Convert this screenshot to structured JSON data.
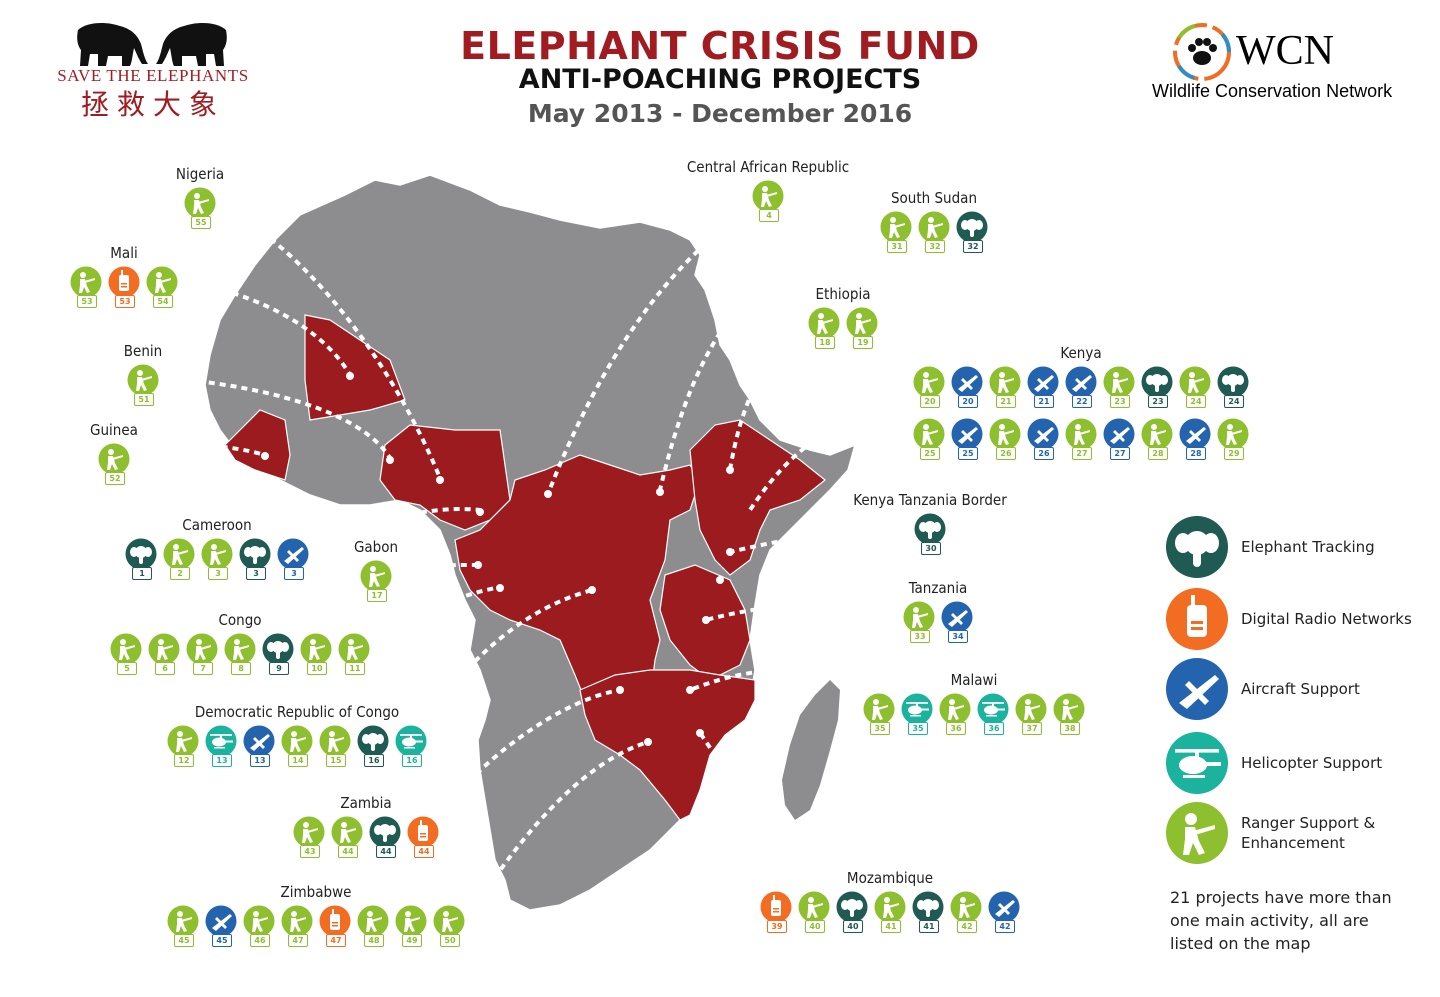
{
  "header": {
    "title": "ELEPHANT CRISIS FUND",
    "subtitle": "ANTI-POACHING PROJECTS",
    "date_range": "May 2013 - December 2016"
  },
  "logos": {
    "save_the_elephants": {
      "text": "SAVE THE ELEPHANTS",
      "chinese": "拯救大象"
    },
    "wcn": {
      "text": "WCN",
      "subtitle": "Wildlife Conservation Network"
    }
  },
  "colors": {
    "title_red": "#a11c21",
    "map_grey": "#8d8d8f",
    "highlight_red": "#9b1b1f",
    "border": "#ffffff",
    "ranger": "#8dbf2e",
    "radio": "#f26c21",
    "aircraft": "#2463ad",
    "helicopter": "#1bb39d",
    "tracking": "#1f5b53"
  },
  "legend": {
    "items": [
      {
        "key": "tracking",
        "label": "Elephant Tracking"
      },
      {
        "key": "radio",
        "label": "Digital Radio Networks"
      },
      {
        "key": "aircraft",
        "label": "Aircraft Support"
      },
      {
        "key": "helicopter",
        "label": "Helicopter Support"
      },
      {
        "key": "ranger",
        "label": "Ranger Support &\nEnhancement"
      }
    ],
    "note": "21 projects have more than one main activity, all are listed on the map"
  },
  "countries": [
    {
      "id": "nigeria",
      "name": "Nigeria",
      "projects": [
        {
          "type": "ranger",
          "n": "55"
        }
      ]
    },
    {
      "id": "mali",
      "name": "Mali",
      "projects": [
        {
          "type": "ranger",
          "n": "53"
        },
        {
          "type": "radio",
          "n": "53"
        },
        {
          "type": "ranger",
          "n": "54"
        }
      ]
    },
    {
      "id": "benin",
      "name": "Benin",
      "projects": [
        {
          "type": "ranger",
          "n": "51"
        }
      ]
    },
    {
      "id": "guinea",
      "name": "Guinea",
      "projects": [
        {
          "type": "ranger",
          "n": "52"
        }
      ]
    },
    {
      "id": "cameroon",
      "name": "Cameroon",
      "projects": [
        {
          "type": "tracking",
          "n": "1"
        },
        {
          "type": "ranger",
          "n": "2"
        },
        {
          "type": "ranger",
          "n": "3"
        },
        {
          "type": "tracking",
          "n": "3"
        },
        {
          "type": "aircraft",
          "n": "3"
        }
      ]
    },
    {
      "id": "gabon",
      "name": "Gabon",
      "projects": [
        {
          "type": "ranger",
          "n": "17"
        }
      ]
    },
    {
      "id": "congo",
      "name": "Congo",
      "projects": [
        {
          "type": "ranger",
          "n": "5"
        },
        {
          "type": "ranger",
          "n": "6"
        },
        {
          "type": "ranger",
          "n": "7"
        },
        {
          "type": "ranger",
          "n": "8"
        },
        {
          "type": "tracking",
          "n": "9"
        },
        {
          "type": "ranger",
          "n": "10"
        },
        {
          "type": "ranger",
          "n": "11"
        }
      ]
    },
    {
      "id": "drc",
      "name": "Democratic Republic of Congo",
      "projects": [
        {
          "type": "ranger",
          "n": "12"
        },
        {
          "type": "helicopter",
          "n": "13"
        },
        {
          "type": "aircraft",
          "n": "13"
        },
        {
          "type": "ranger",
          "n": "14"
        },
        {
          "type": "ranger",
          "n": "15"
        },
        {
          "type": "tracking",
          "n": "16"
        },
        {
          "type": "helicopter",
          "n": "16"
        }
      ]
    },
    {
      "id": "zambia",
      "name": "Zambia",
      "projects": [
        {
          "type": "ranger",
          "n": "43"
        },
        {
          "type": "ranger",
          "n": "44"
        },
        {
          "type": "tracking",
          "n": "44"
        },
        {
          "type": "radio",
          "n": "44"
        }
      ]
    },
    {
      "id": "zimbabwe",
      "name": "Zimbabwe",
      "projects": [
        {
          "type": "ranger",
          "n": "45"
        },
        {
          "type": "aircraft",
          "n": "45"
        },
        {
          "type": "ranger",
          "n": "46"
        },
        {
          "type": "ranger",
          "n": "47"
        },
        {
          "type": "radio",
          "n": "47"
        },
        {
          "type": "ranger",
          "n": "48"
        },
        {
          "type": "ranger",
          "n": "49"
        },
        {
          "type": "ranger",
          "n": "50"
        }
      ]
    },
    {
      "id": "car",
      "name": "Central African Republic",
      "projects": [
        {
          "type": "ranger",
          "n": "4"
        }
      ]
    },
    {
      "id": "south_sudan",
      "name": "South Sudan",
      "projects": [
        {
          "type": "ranger",
          "n": "31"
        },
        {
          "type": "ranger",
          "n": "32"
        },
        {
          "type": "tracking",
          "n": "32"
        }
      ]
    },
    {
      "id": "ethiopia",
      "name": "Ethiopia",
      "projects": [
        {
          "type": "ranger",
          "n": "18"
        },
        {
          "type": "ranger",
          "n": "19"
        }
      ]
    },
    {
      "id": "kenya",
      "name": "Kenya",
      "rows": [
        [
          {
            "type": "ranger",
            "n": "20"
          },
          {
            "type": "aircraft",
            "n": "20"
          },
          {
            "type": "ranger",
            "n": "21"
          },
          {
            "type": "aircraft",
            "n": "21"
          },
          {
            "type": "aircraft",
            "n": "22"
          },
          {
            "type": "ranger",
            "n": "23"
          },
          {
            "type": "tracking",
            "n": "23"
          },
          {
            "type": "ranger",
            "n": "24"
          },
          {
            "type": "tracking",
            "n": "24"
          }
        ],
        [
          {
            "type": "ranger",
            "n": "25"
          },
          {
            "type": "aircraft",
            "n": "25"
          },
          {
            "type": "ranger",
            "n": "26"
          },
          {
            "type": "aircraft",
            "n": "26"
          },
          {
            "type": "ranger",
            "n": "27"
          },
          {
            "type": "aircraft",
            "n": "27"
          },
          {
            "type": "ranger",
            "n": "28"
          },
          {
            "type": "aircraft",
            "n": "28"
          },
          {
            "type": "ranger",
            "n": "29"
          }
        ]
      ]
    },
    {
      "id": "kenya_tanzania",
      "name": "Kenya Tanzania Border",
      "projects": [
        {
          "type": "tracking",
          "n": "30"
        }
      ]
    },
    {
      "id": "tanzania",
      "name": "Tanzania",
      "projects": [
        {
          "type": "ranger",
          "n": "33"
        },
        {
          "type": "aircraft",
          "n": "34"
        }
      ]
    },
    {
      "id": "malawi",
      "name": "Malawi",
      "projects": [
        {
          "type": "ranger",
          "n": "35"
        },
        {
          "type": "helicopter",
          "n": "35"
        },
        {
          "type": "ranger",
          "n": "36"
        },
        {
          "type": "helicopter",
          "n": "36"
        },
        {
          "type": "ranger",
          "n": "37"
        },
        {
          "type": "ranger",
          "n": "38"
        }
      ]
    },
    {
      "id": "mozambique",
      "name": "Mozambique",
      "projects": [
        {
          "type": "radio",
          "n": "39"
        },
        {
          "type": "ranger",
          "n": "40"
        },
        {
          "type": "tracking",
          "n": "40"
        },
        {
          "type": "ranger",
          "n": "41"
        },
        {
          "type": "tracking",
          "n": "41"
        },
        {
          "type": "ranger",
          "n": "42"
        },
        {
          "type": "aircraft",
          "n": "42"
        }
      ]
    }
  ]
}
